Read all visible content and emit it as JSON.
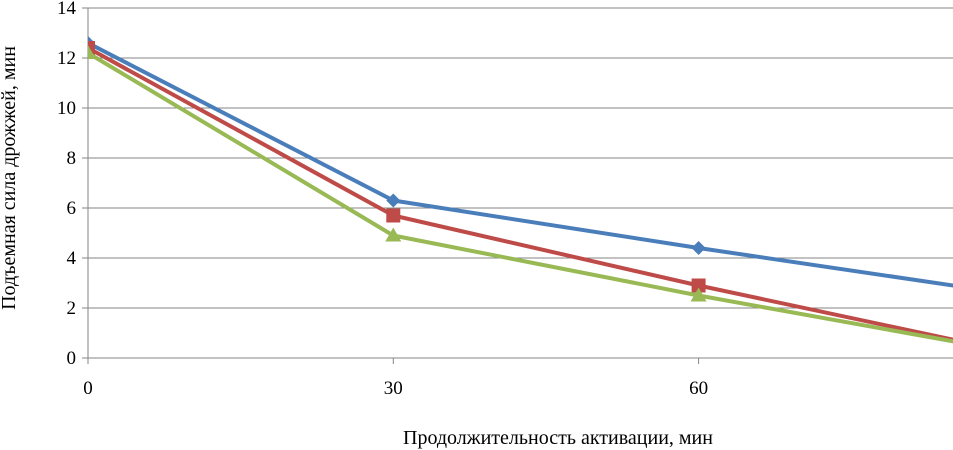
{
  "chart_data": {
    "type": "line",
    "title": "",
    "xlabel": "Продолжительность активации, мин",
    "ylabel": "Подъемная сила дрожжей, мин",
    "x_ticks": [
      "0",
      "30",
      "60"
    ],
    "y_ticks": [
      "0",
      "2",
      "4",
      "6",
      "8",
      "10",
      "12",
      "14"
    ],
    "ylim": [
      0,
      14
    ],
    "xlim": [
      0,
      85
    ],
    "grid": true,
    "legend": "none",
    "series": [
      {
        "color": "#4a7ebb",
        "marker": "diamond",
        "x": [
          0,
          30,
          60,
          90
        ],
        "y": [
          12.6,
          6.3,
          4.4,
          2.6
        ]
      },
      {
        "color": "#be4b48",
        "marker": "square",
        "x": [
          0,
          30,
          60,
          90
        ],
        "y": [
          12.4,
          5.7,
          2.9,
          0.3
        ]
      },
      {
        "color": "#98b954",
        "marker": "triangle",
        "x": [
          0,
          30,
          60,
          90
        ],
        "y": [
          12.2,
          4.9,
          2.5,
          0.3
        ]
      }
    ]
  }
}
